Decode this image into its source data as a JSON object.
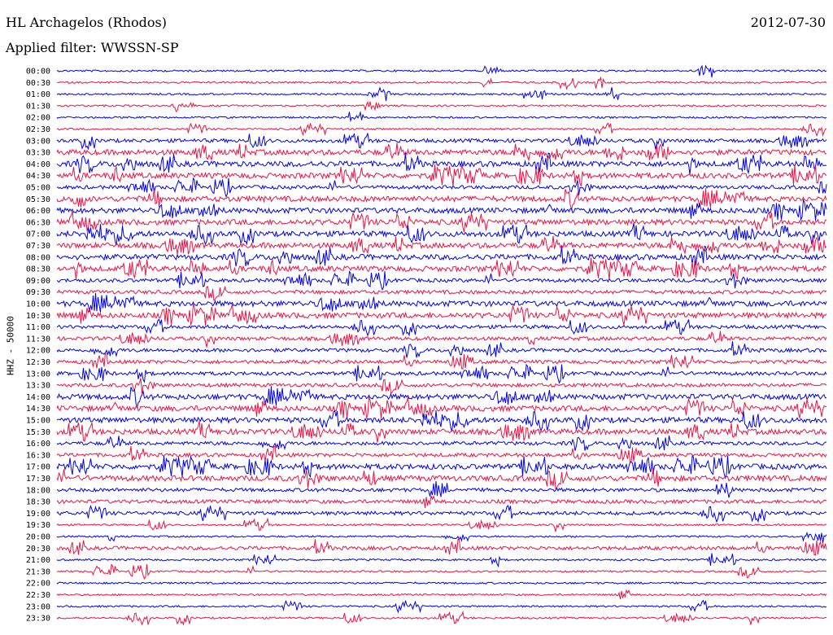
{
  "header": {
    "station": "HL Archagelos (Rhodos)",
    "date": "2012-07-30",
    "filter": "Applied filter: WWSSN-SP"
  },
  "chart_data": {
    "type": "line",
    "title": "HL Archagelos (Rhodos)",
    "subtitle": "Applied filter: WWSSN-SP",
    "ylabel": "HHZ - 50000",
    "trace_colors": [
      "#0000ee",
      "#ee1144"
    ],
    "rows": [
      "00:00",
      "00:30",
      "01:00",
      "01:30",
      "02:00",
      "02:30",
      "03:00",
      "03:30",
      "04:00",
      "04:30",
      "05:00",
      "05:30",
      "06:00",
      "06:30",
      "07:00",
      "07:30",
      "08:00",
      "08:30",
      "09:00",
      "09:30",
      "10:00",
      "10:30",
      "11:00",
      "11:30",
      "12:00",
      "12:30",
      "13:00",
      "13:30",
      "14:00",
      "14:30",
      "15:00",
      "15:30",
      "16:00",
      "16:30",
      "17:00",
      "17:30",
      "18:00",
      "18:30",
      "19:00",
      "19:30",
      "20:00",
      "20:30",
      "21:00",
      "21:30",
      "22:00",
      "22:30",
      "23:00",
      "23:30"
    ],
    "row_noise_level": [
      1,
      1,
      1,
      1,
      1,
      1,
      2,
      3,
      3,
      3,
      2,
      3,
      3,
      3,
      3,
      3,
      3,
      3,
      2,
      2,
      3,
      3,
      2,
      2,
      2,
      2,
      2,
      2,
      3,
      3,
      3,
      3,
      2,
      2,
      3,
      3,
      2,
      2,
      2,
      1,
      1,
      2,
      1,
      1,
      1,
      1,
      1,
      1
    ],
    "grid": false
  }
}
